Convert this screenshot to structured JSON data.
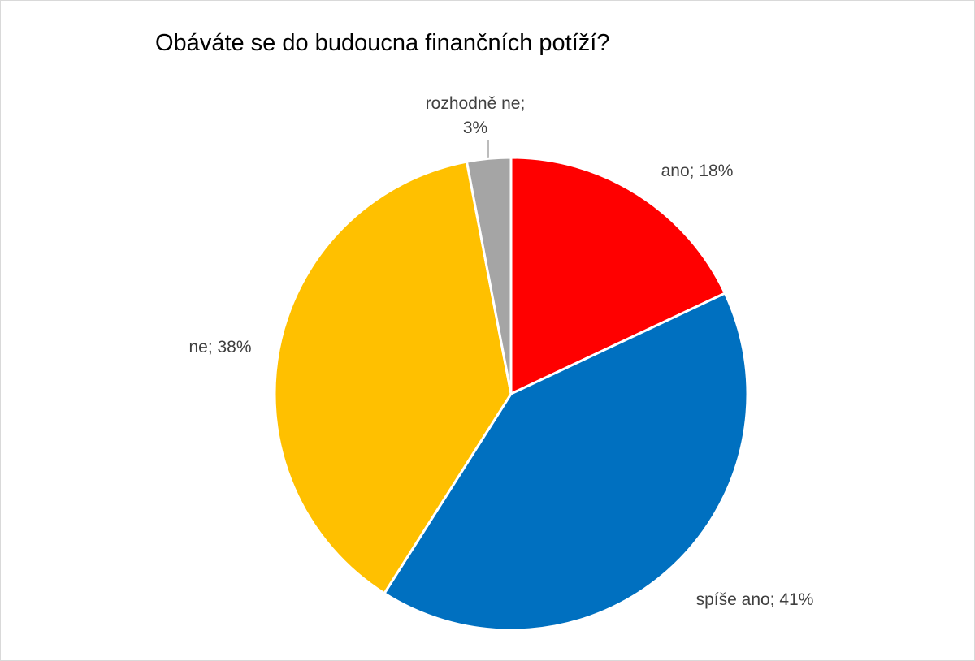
{
  "chart_data": {
    "type": "pie",
    "title": "Obáváte se do budoucna finančních potíží?",
    "values": [
      18,
      41,
      38,
      3
    ],
    "value_labels": [
      "ano; 18%",
      "spíše ano; 41%",
      "ne; 38%",
      "rozhodně ne; 3%"
    ],
    "colors": [
      "#ff0000",
      "#0070c0",
      "#ffc000",
      "#a5a5a5"
    ]
  }
}
